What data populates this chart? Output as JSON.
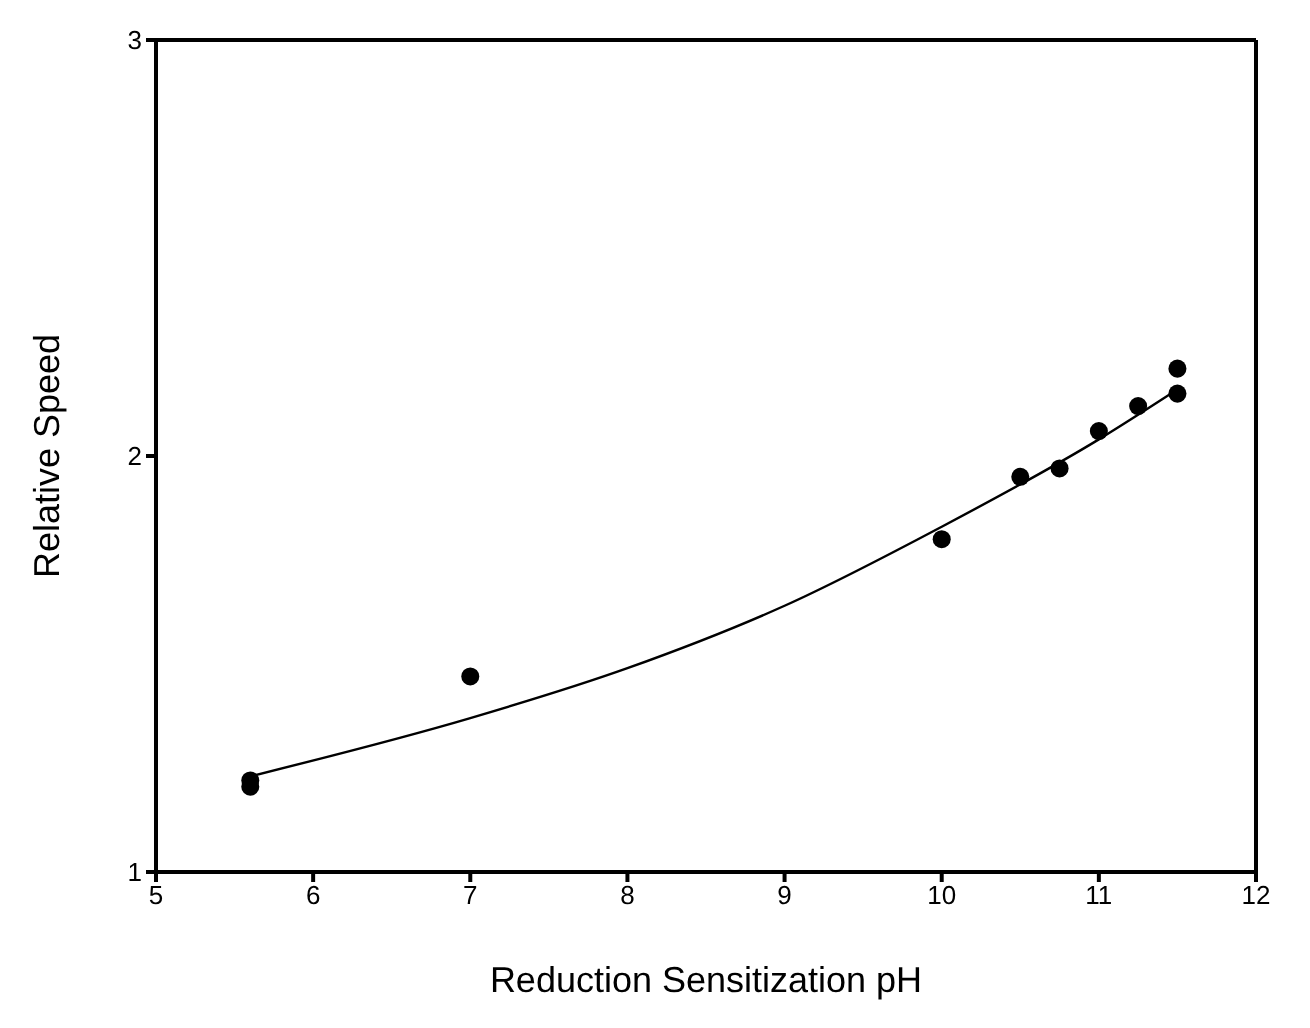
{
  "chart_data": {
    "type": "scatter",
    "xlabel": "Reduction Sensitization pH",
    "ylabel": "Relative Speed",
    "xlim": [
      5,
      12
    ],
    "xticks": [
      5,
      6,
      7,
      8,
      9,
      10,
      11,
      12
    ],
    "ylim": [
      1,
      3
    ],
    "yticks": [
      1,
      2,
      3
    ],
    "legend": false,
    "series": [
      {
        "color": "#000000",
        "marker": "circle",
        "x": [
          5.6,
          5.6,
          7,
          10,
          10.5,
          10.75,
          11,
          11.25,
          11.5,
          11.5
        ],
        "values": [
          1.22,
          1.205,
          1.47,
          1.8,
          1.95,
          1.97,
          2.06,
          2.12,
          2.21,
          2.15
        ]
      },
      {
        "type": "line",
        "color": "#000000",
        "marker": "none",
        "line_style": "solid",
        "x": [
          5.6,
          7,
          8,
          9,
          10,
          11,
          11.5
        ],
        "values": [
          1.23,
          1.37,
          1.49,
          1.64,
          1.83,
          2.04,
          2.16
        ]
      }
    ]
  }
}
